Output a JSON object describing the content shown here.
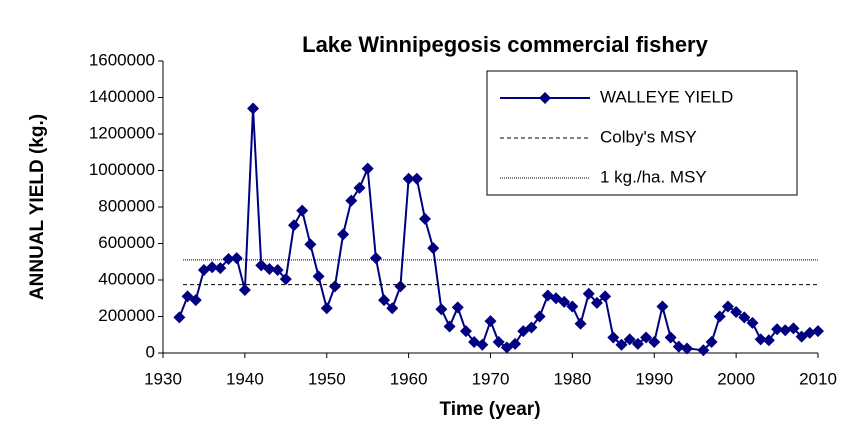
{
  "chart_data": {
    "type": "line",
    "title": "Lake Winnipegosis commercial fishery",
    "x_label": "Time (year)",
    "y_label": "ANNUAL  YIELD (kg.)",
    "series": [
      {
        "name": "WALLEYE YIELD",
        "color": "#000080",
        "marker": "diamond",
        "x": [
          1932,
          1933,
          1934,
          1935,
          1936,
          1937,
          1938,
          1939,
          1940,
          1941,
          1942,
          1943,
          1944,
          1945,
          1946,
          1947,
          1948,
          1949,
          1950,
          1951,
          1952,
          1953,
          1954,
          1955,
          1956,
          1957,
          1958,
          1959,
          1960,
          1961,
          1962,
          1963,
          1964,
          1965,
          1966,
          1967,
          1968,
          1969,
          1970,
          1971,
          1972,
          1973,
          1974,
          1975,
          1976,
          1977,
          1978,
          1979,
          1980,
          1981,
          1982,
          1983,
          1984,
          1985,
          1986,
          1987,
          1988,
          1989,
          1990,
          1991,
          1992,
          1993,
          1994,
          1996,
          1997,
          1998,
          1999,
          2000,
          2001,
          2002,
          2003,
          2004,
          2005,
          2006,
          2007,
          2008,
          2009,
          2010
        ],
        "values": [
          195000,
          310000,
          290000,
          455000,
          470000,
          465000,
          515000,
          520000,
          345000,
          1340000,
          480000,
          460000,
          455000,
          405000,
          700000,
          780000,
          595000,
          420000,
          245000,
          365000,
          650000,
          835000,
          905000,
          1010000,
          520000,
          290000,
          245000,
          365000,
          955000,
          955000,
          735000,
          575000,
          240000,
          145000,
          250000,
          120000,
          60000,
          45000,
          175000,
          60000,
          30000,
          50000,
          120000,
          140000,
          200000,
          315000,
          300000,
          280000,
          255000,
          160000,
          325000,
          275000,
          310000,
          85000,
          45000,
          75000,
          50000,
          85000,
          60000,
          255000,
          85000,
          35000,
          25000,
          15000,
          60000,
          200000,
          255000,
          225000,
          195000,
          165000,
          75000,
          70000,
          130000,
          125000,
          135000,
          90000,
          110000,
          120000
        ]
      }
    ],
    "reference_lines": [
      {
        "name": "Colby's MSY",
        "value": 375000,
        "style": "dashed"
      },
      {
        "name": "1 kg./ha. MSY",
        "value": 510000,
        "style": "dotted"
      }
    ],
    "xlim": [
      1930,
      2010
    ],
    "xticks": [
      1930,
      1940,
      1950,
      1960,
      1970,
      1980,
      1990,
      2000,
      2010
    ],
    "ylim": [
      0,
      1600000
    ],
    "yticks": [
      0,
      200000,
      400000,
      600000,
      800000,
      1000000,
      1200000,
      1400000,
      1600000
    ],
    "legend": "upper right"
  }
}
